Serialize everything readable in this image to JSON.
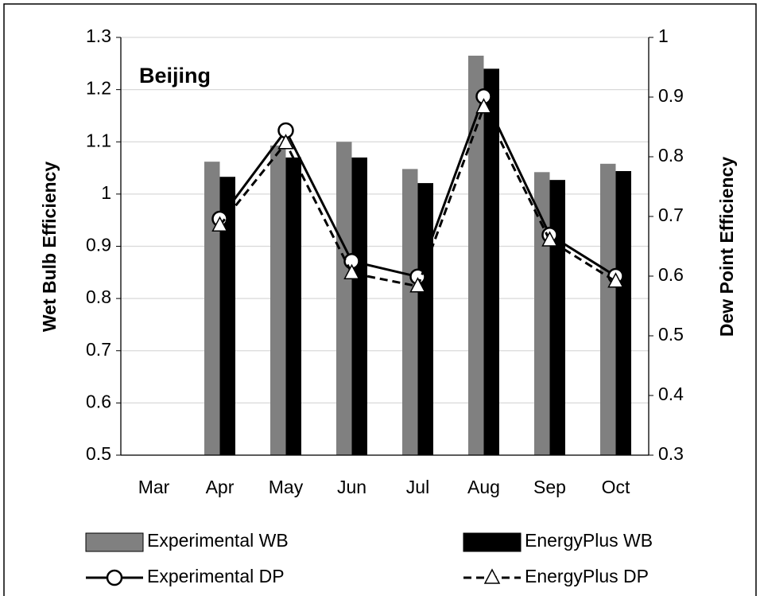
{
  "chart_data": {
    "type": "bar",
    "annotation": "Beijing",
    "y_label": "Wet Bulb Efficiency",
    "y2_label": "Dew Point Efficiency",
    "categories": [
      "Mar",
      "Apr",
      "May",
      "Jun",
      "Jul",
      "Aug",
      "Sep",
      "Oct"
    ],
    "series": [
      {
        "name": "Experimental WB",
        "type": "bar",
        "color": "#808080",
        "values": [
          null,
          1.062,
          1.093,
          1.1,
          1.048,
          1.265,
          1.042,
          1.058
        ]
      },
      {
        "name": "EnergyPlus WB",
        "type": "bar",
        "color": "#000000",
        "values": [
          null,
          1.033,
          1.07,
          1.07,
          1.021,
          1.24,
          1.027,
          1.044
        ]
      },
      {
        "name": "Experimental DP",
        "type": "line",
        "axis": "y2",
        "color": "#000000",
        "marker": "circle",
        "dashed": false,
        "values": [
          null,
          0.696,
          0.844,
          0.625,
          0.599,
          0.901,
          0.669,
          0.6
        ]
      },
      {
        "name": "EnergyPlus DP",
        "type": "line",
        "axis": "y2",
        "color": "#000000",
        "marker": "triangle",
        "dashed": true,
        "values": [
          null,
          0.685,
          0.823,
          0.605,
          0.583,
          0.883,
          0.66,
          0.591
        ]
      }
    ],
    "ylim": [
      0.5,
      1.3
    ],
    "yticks": [
      0.5,
      0.6,
      0.7,
      0.8,
      0.9,
      1,
      1.1,
      1.2,
      1.3
    ],
    "y2lim": [
      0.3,
      1
    ],
    "y2ticks": [
      0.3,
      0.4,
      0.5,
      0.6,
      0.7,
      0.8,
      0.9,
      1
    ],
    "grid": true
  }
}
